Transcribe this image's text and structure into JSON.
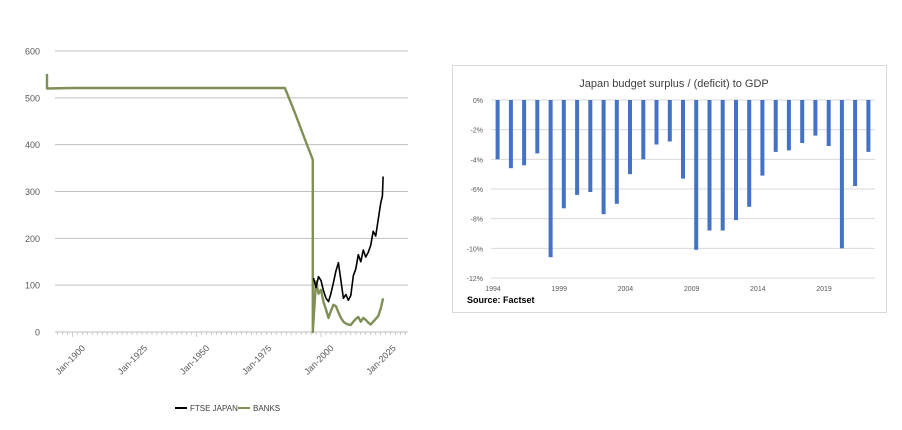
{
  "chart_data": [
    {
      "type": "line",
      "title": "",
      "xlabel": "",
      "ylabel": "",
      "ylim": [
        0,
        600
      ],
      "yticks": [
        "0",
        "100",
        "200",
        "300",
        "400",
        "500",
        "600"
      ],
      "xticks": [
        "Jan-1900",
        "Jan-1925",
        "Jan-1950",
        "Jan-1975",
        "Jan-2000",
        "Jan-2025"
      ],
      "xlim": [
        "1893-01",
        "2035-01"
      ],
      "grid": true,
      "legend_position": "bottom",
      "colors": {
        "FTSE JAPAN": "#000000",
        "BANKS": "#7f8f55",
        "grid": "#bfbfbf"
      },
      "series": [
        {
          "name": "BANKS",
          "points": [
            [
              1889.8,
              551
            ],
            [
              1889.8,
              520
            ],
            [
              1900.0,
              521
            ],
            [
              1950.0,
              521
            ],
            [
              1985.5,
              521
            ],
            [
              1989.6,
              467
            ],
            [
              1993.5,
              412
            ],
            [
              1996.7,
              368
            ],
            [
              1996.7,
              0
            ],
            [
              1996.7,
              0
            ],
            [
              1998.0,
              108
            ],
            [
              1999.0,
              82
            ],
            [
              2000.0,
              90
            ],
            [
              2001.0,
              64
            ],
            [
              2002.0,
              48
            ],
            [
              2003.0,
              30
            ],
            [
              2004.0,
              45
            ],
            [
              2005.0,
              58
            ],
            [
              2006.0,
              55
            ],
            [
              2007.0,
              42
            ],
            [
              2008.0,
              30
            ],
            [
              2009.0,
              22
            ],
            [
              2010.0,
              18
            ],
            [
              2011.0,
              16
            ],
            [
              2012.0,
              15
            ],
            [
              2013.0,
              22
            ],
            [
              2014.0,
              28
            ],
            [
              2015.0,
              32
            ],
            [
              2016.0,
              22
            ],
            [
              2017.0,
              30
            ],
            [
              2018.0,
              26
            ],
            [
              2019.0,
              20
            ],
            [
              2020.0,
              16
            ],
            [
              2021.0,
              22
            ],
            [
              2022.0,
              28
            ],
            [
              2023.0,
              34
            ],
            [
              2024.0,
              50
            ],
            [
              2025.0,
              72
            ]
          ]
        },
        {
          "name": "FTSE JAPAN",
          "points": [
            [
              1997.0,
              115
            ],
            [
              1998.0,
              95
            ],
            [
              1999.0,
              118
            ],
            [
              2000.0,
              110
            ],
            [
              2001.0,
              88
            ],
            [
              2002.0,
              72
            ],
            [
              2003.0,
              65
            ],
            [
              2004.0,
              82
            ],
            [
              2005.0,
              105
            ],
            [
              2006.0,
              130
            ],
            [
              2007.0,
              148
            ],
            [
              2008.0,
              110
            ],
            [
              2009.0,
              72
            ],
            [
              2010.0,
              80
            ],
            [
              2011.0,
              68
            ],
            [
              2012.0,
              78
            ],
            [
              2013.0,
              120
            ],
            [
              2014.0,
              135
            ],
            [
              2015.0,
              165
            ],
            [
              2016.0,
              150
            ],
            [
              2017.0,
              175
            ],
            [
              2018.0,
              160
            ],
            [
              2019.0,
              170
            ],
            [
              2020.0,
              185
            ],
            [
              2021.0,
              215
            ],
            [
              2022.0,
              205
            ],
            [
              2023.0,
              240
            ],
            [
              2024.0,
              275
            ],
            [
              2024.7,
              290
            ],
            [
              2025.0,
              332
            ]
          ]
        }
      ]
    },
    {
      "type": "bar",
      "title": "Japan budget surplus / (deficit) to GDP",
      "xlabel": "",
      "ylabel": "",
      "ylim": [
        -12,
        0
      ],
      "yticks": [
        "0%",
        "-2%",
        "-4%",
        "-6%",
        "-8%",
        "-10%",
        "-12%"
      ],
      "xticks": [
        "1994",
        "1999",
        "2004",
        "2009",
        "2014",
        "2019"
      ],
      "grid": true,
      "colors": {
        "bar": "#4472c4",
        "grid": "#d9d9d9"
      },
      "series": [
        {
          "name": "",
          "categories": [
            1994,
            1995,
            1996,
            1997,
            1998,
            1999,
            2000,
            2001,
            2002,
            2003,
            2004,
            2005,
            2006,
            2007,
            2008,
            2009,
            2010,
            2011,
            2012,
            2013,
            2014,
            2015,
            2016,
            2017,
            2018,
            2019,
            2020,
            2021,
            2022
          ],
          "values": [
            -4.0,
            -4.6,
            -4.4,
            -3.6,
            -10.6,
            -7.3,
            -6.4,
            -6.2,
            -7.7,
            -7.0,
            -5.0,
            -4.0,
            -3.0,
            -2.8,
            -5.3,
            -10.1,
            -8.8,
            -8.8,
            -8.1,
            -7.2,
            -5.1,
            -3.5,
            -3.4,
            -2.9,
            -2.4,
            -3.1,
            -10.0,
            -5.8,
            -3.5
          ]
        }
      ],
      "source": "Source: Factset"
    }
  ]
}
